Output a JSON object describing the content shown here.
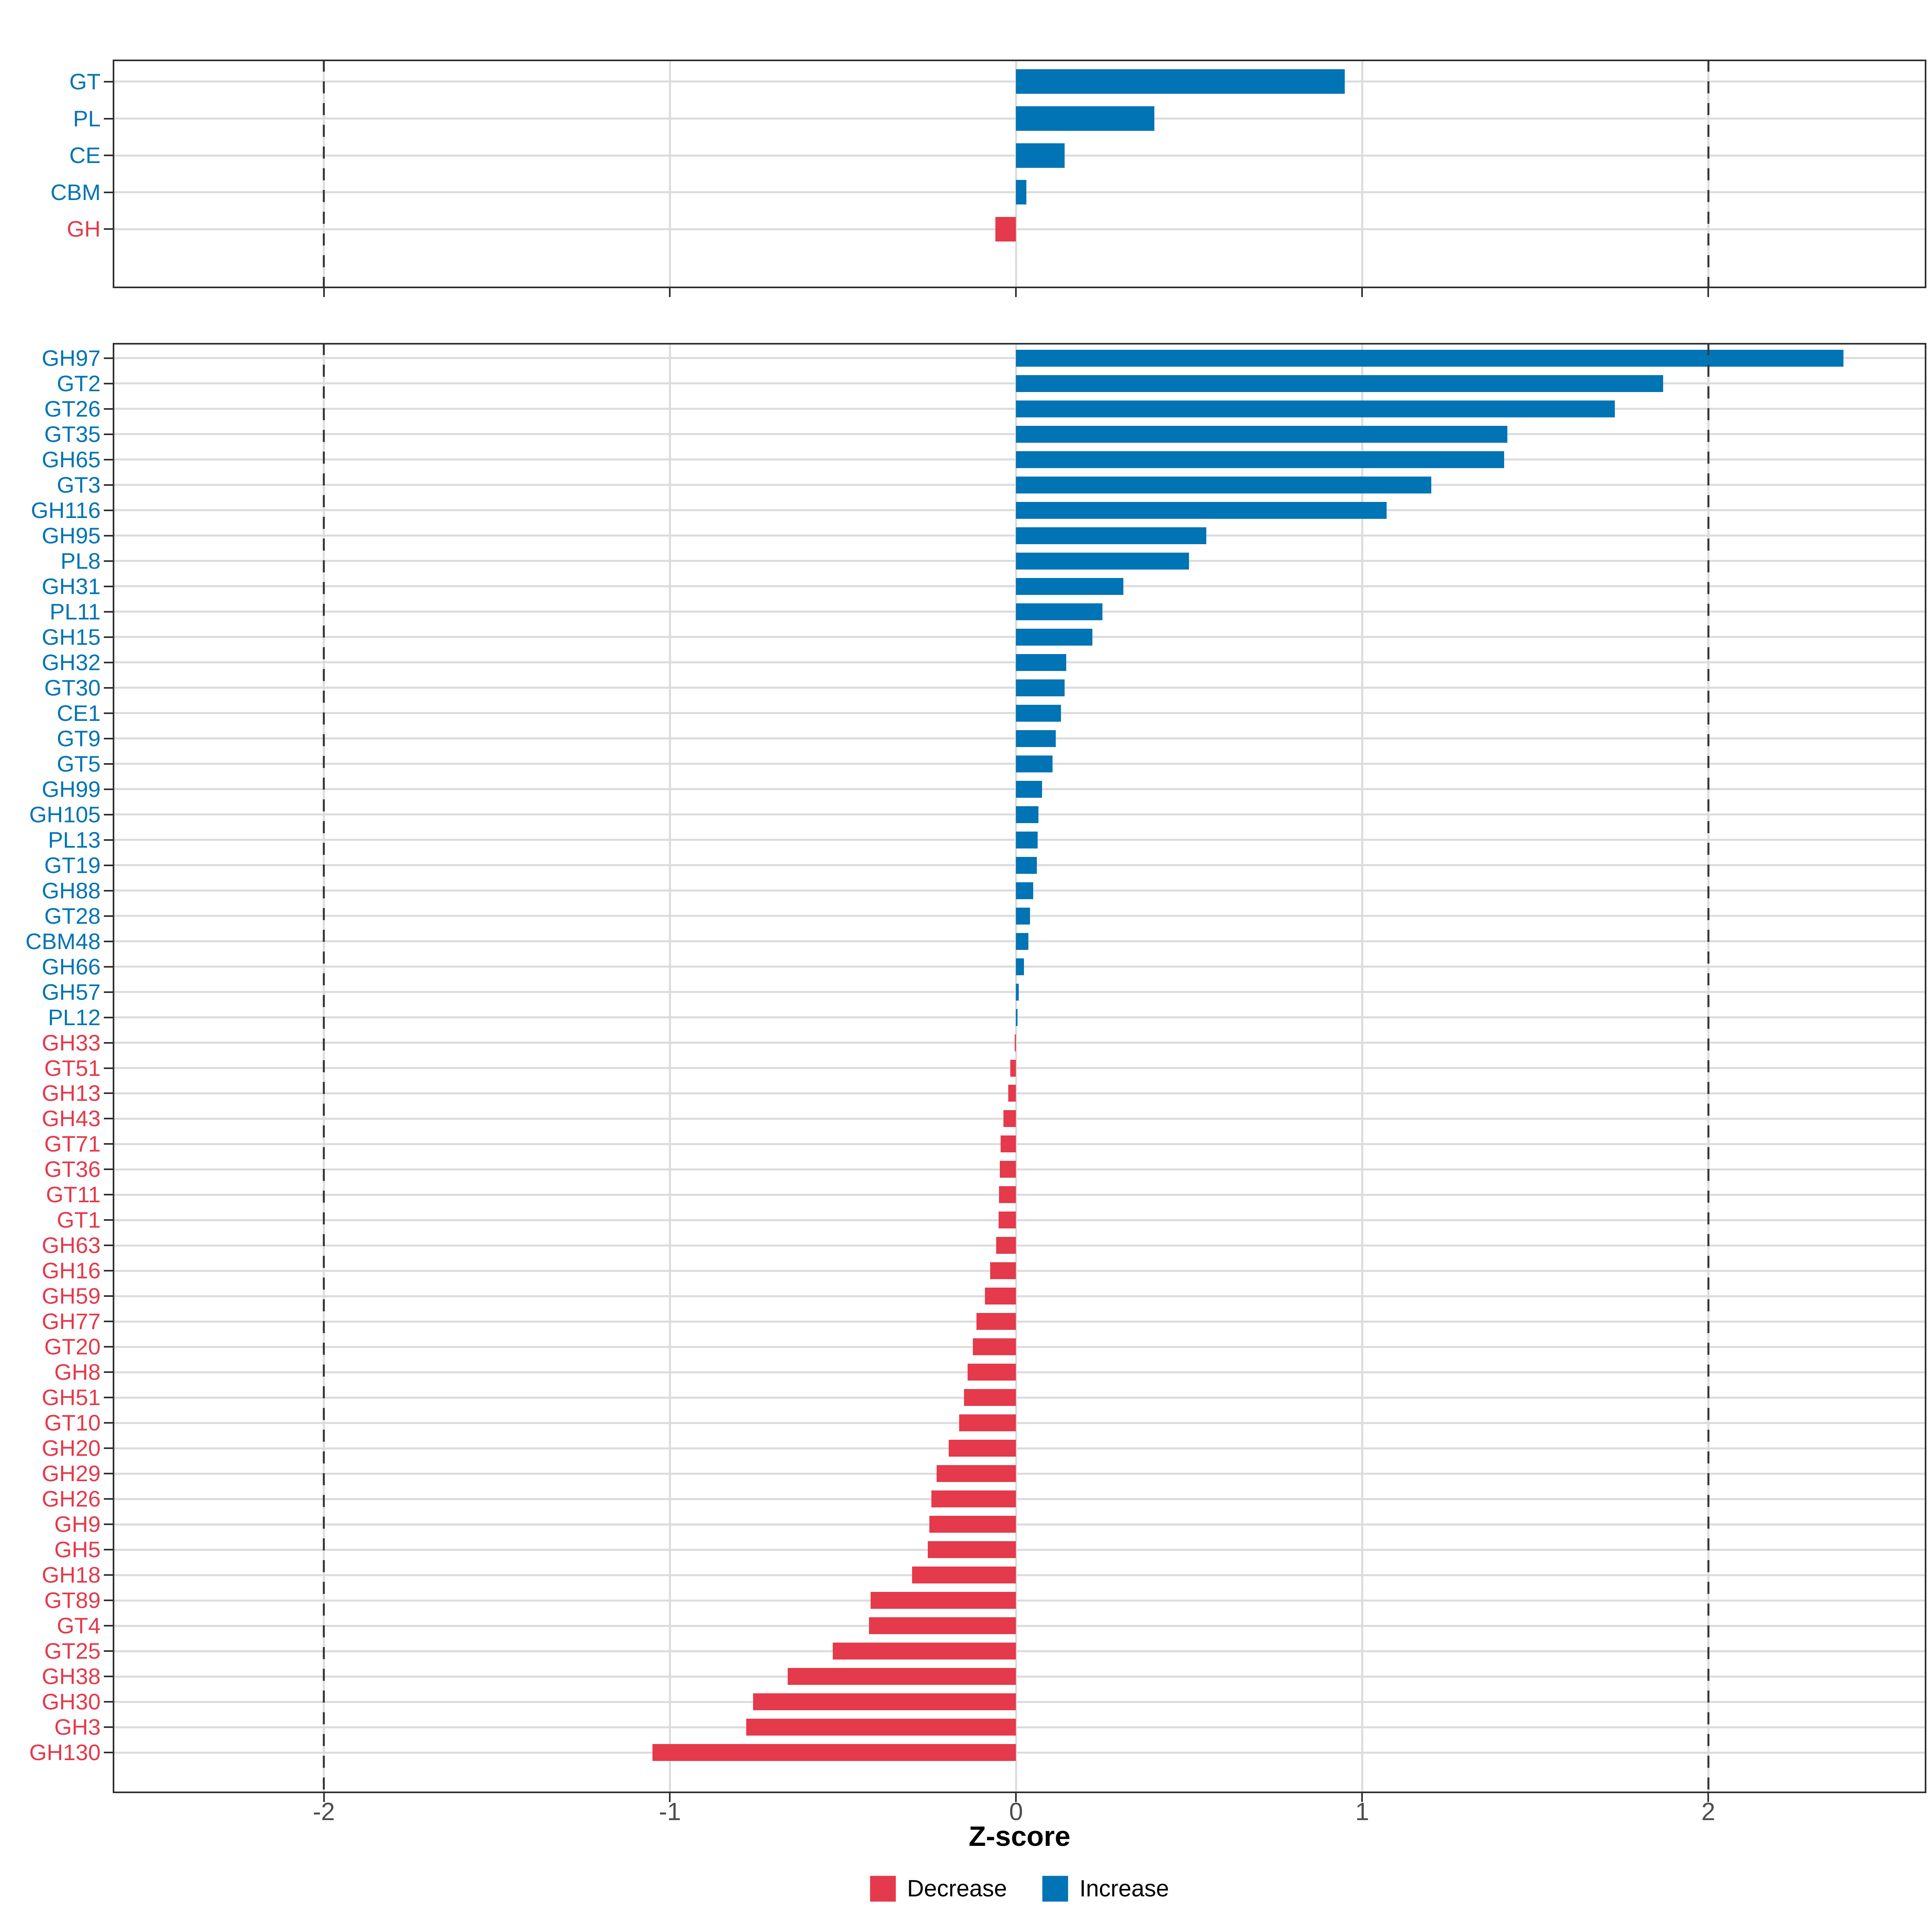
{
  "figure": {
    "background": "#FFFFFF"
  },
  "axis": {
    "x_label": "Z-score",
    "ticks": [
      -2,
      -1,
      0,
      1,
      2
    ],
    "tick_labels": [
      "-2",
      "-1",
      "0",
      "1",
      "2"
    ],
    "xlim": [
      -2.61,
      2.63
    ],
    "reference_lines": [
      -2,
      2
    ]
  },
  "legend": {
    "items": [
      {
        "key": "decrease",
        "label": "Decrease",
        "color": "#E43A4B"
      },
      {
        "key": "increase",
        "label": "Increase",
        "color": "#0074B4"
      }
    ]
  },
  "colors": {
    "increase": "#0074B4",
    "decrease": "#E43A4B",
    "grid": "#DCDCDC",
    "dashed_line": "#3A3A3A",
    "axis_text": "#4D4D4D",
    "panel_border": "#2F2F2F",
    "tick_mark": "#2F2F2F",
    "title_text": "#000000"
  },
  "chart_data": [
    {
      "type": "bar",
      "orientation": "horizontal",
      "panel": "category-summary",
      "title": "",
      "xlabel": "Z-score",
      "ylabel": "",
      "grid": true,
      "legend_position": "bottom",
      "categories": [
        "GT",
        "PL",
        "CE",
        "CBM",
        "GH"
      ],
      "values": [
        0.95,
        0.4,
        0.14,
        0.03,
        -0.06
      ]
    },
    {
      "type": "bar",
      "orientation": "horizontal",
      "panel": "families",
      "title": "",
      "xlabel": "Z-score",
      "ylabel": "",
      "grid": true,
      "legend_position": "bottom",
      "categories": [
        "GH97",
        "GT2",
        "GT26",
        "GT35",
        "GH65",
        "GT3",
        "GH116",
        "GH95",
        "PL8",
        "GH31",
        "PL11",
        "GH15",
        "GH32",
        "GT30",
        "CE1",
        "GT9",
        "GT5",
        "GH99",
        "GH105",
        "PL13",
        "GT19",
        "GH88",
        "GT28",
        "CBM48",
        "GH66",
        "GH57",
        "PL12",
        "GH33",
        "GT51",
        "GH13",
        "GH43",
        "GT71",
        "GT36",
        "GT11",
        "GT1",
        "GH63",
        "GH16",
        "GH59",
        "GH77",
        "GT20",
        "GH8",
        "GH51",
        "GT10",
        "GH20",
        "GH29",
        "GH26",
        "GH9",
        "GH5",
        "GH18",
        "GT89",
        "GT4",
        "GT25",
        "GH38",
        "GH30",
        "GH3",
        "GH130"
      ],
      "values": [
        2.39,
        1.87,
        1.73,
        1.42,
        1.41,
        1.2,
        1.07,
        0.55,
        0.5,
        0.31,
        0.25,
        0.22,
        0.145,
        0.14,
        0.13,
        0.115,
        0.105,
        0.075,
        0.065,
        0.062,
        0.06,
        0.049,
        0.04,
        0.036,
        0.023,
        0.008,
        0.004,
        -0.004,
        -0.017,
        -0.022,
        -0.037,
        -0.045,
        -0.047,
        -0.049,
        -0.051,
        -0.058,
        -0.075,
        -0.09,
        -0.115,
        -0.125,
        -0.14,
        -0.15,
        -0.165,
        -0.195,
        -0.23,
        -0.245,
        -0.25,
        -0.255,
        -0.3,
        -0.42,
        -0.425,
        -0.53,
        -0.66,
        -0.76,
        -0.78,
        -1.05
      ]
    }
  ]
}
